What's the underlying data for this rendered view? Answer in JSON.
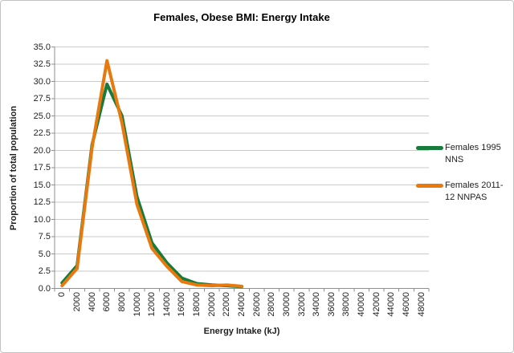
{
  "chart_data": {
    "type": "line",
    "title": "Females, Obese BMI: Energy Intake",
    "xlabel": "Energy Intake (kJ)",
    "ylabel": "Proportion of total population",
    "ylim": [
      0,
      35
    ],
    "y_ticks": [
      "0.0",
      "2.5",
      "5.0",
      "7.5",
      "10.0",
      "12.5",
      "15.0",
      "17.5",
      "20.0",
      "22.5",
      "25.0",
      "27.5",
      "30.0",
      "32.5",
      "35.0"
    ],
    "categories": [
      "0",
      "2000",
      "4000",
      "6000",
      "8000",
      "10000",
      "12000",
      "14000",
      "16000",
      "18000",
      "20000",
      "22000",
      "24000",
      "26000",
      "28000",
      "30000",
      "32000",
      "34000",
      "36000",
      "38000",
      "40000",
      "42000",
      "44000",
      "46000",
      "48000"
    ],
    "grid": "horizontal",
    "legend_position": "right",
    "series": [
      {
        "name": "Females 1995 NNS",
        "color": "#177b3b",
        "values": [
          0.8,
          3.3,
          20.8,
          29.6,
          25.0,
          13.3,
          6.6,
          3.7,
          1.5,
          0.7,
          0.5,
          0.4,
          0.25
        ]
      },
      {
        "name": "Females 2011-12 NNPAS",
        "color": "#e8790f",
        "values": [
          0.4,
          2.9,
          20.4,
          33.0,
          24.0,
          12.2,
          5.8,
          3.2,
          1.0,
          0.5,
          0.4,
          0.5,
          0.3
        ]
      }
    ]
  },
  "colors": {
    "axis": "#8f8f8f",
    "gridline": "#cacaca",
    "border": "#c3c3c3",
    "background": "#ffffff",
    "text": "#1f1f1f"
  }
}
